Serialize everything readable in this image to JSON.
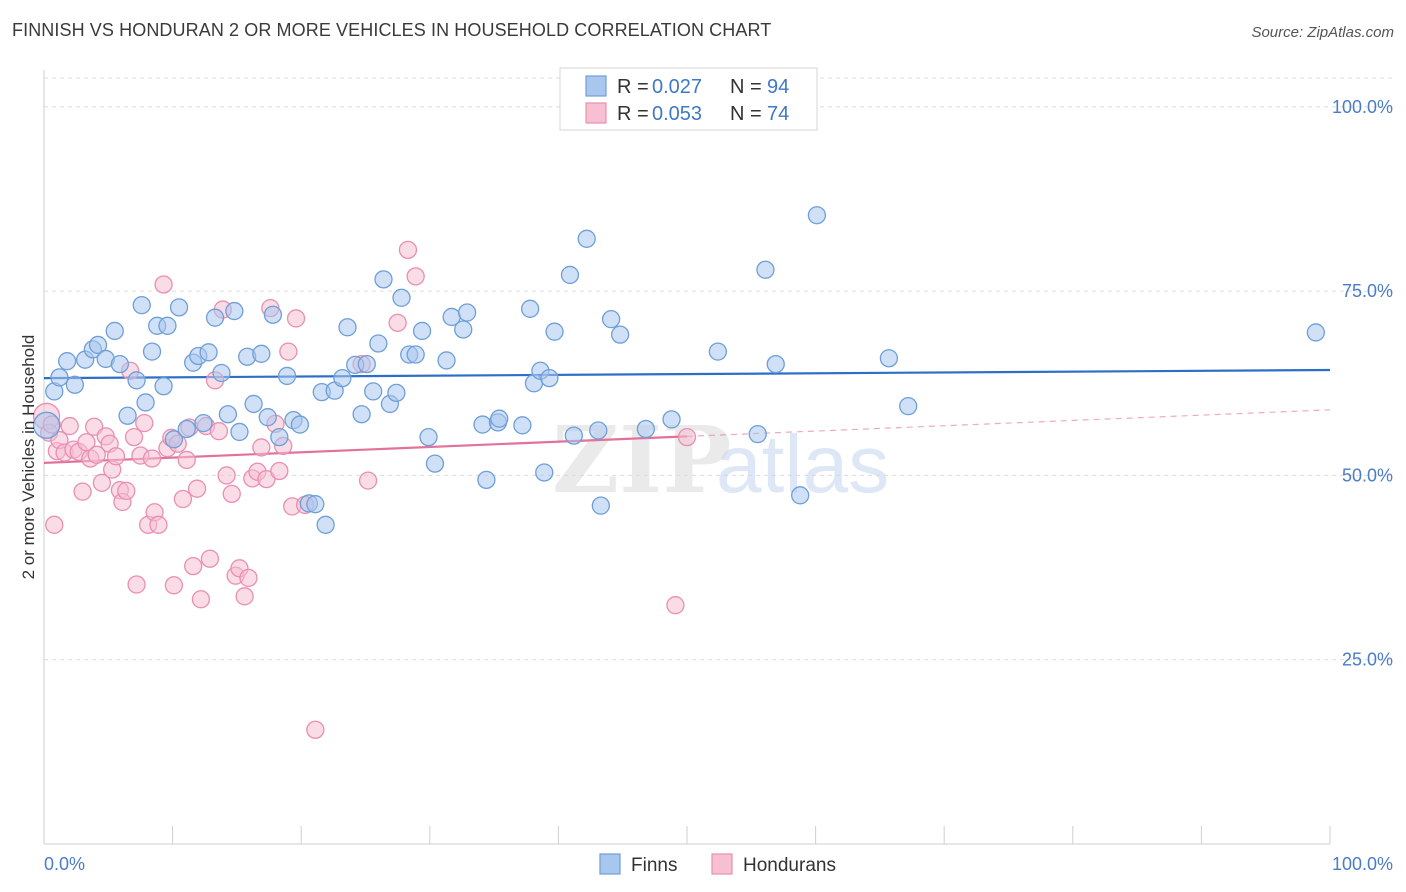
{
  "title": "FINNISH VS HONDURAN 2 OR MORE VEHICLES IN HOUSEHOLD CORRELATION CHART",
  "source": "Source: ZipAtlas.com",
  "watermark": {
    "zip": "ZIP",
    "atlas": "atlas"
  },
  "colors": {
    "finns_fill": "#a9c6ee",
    "finns_stroke": "#6f9fd8",
    "finns_line": "#2d6fc7",
    "hondurans_fill": "#f6bfd2",
    "hondurans_stroke": "#e98fb0",
    "hondurans_line": "#e2729a",
    "grid": "#dcdcdc",
    "axis_label": "#4a7cc9"
  },
  "legend": {
    "finns": {
      "r_label": "R = ",
      "r_value": "0.027",
      "n_label": "N = ",
      "n_value": "94"
    },
    "hondurans": {
      "r_label": "R = ",
      "r_value": "0.053",
      "n_label": "N = ",
      "n_value": "74"
    }
  },
  "bottom_legend": {
    "finns": "Finns",
    "hondurans": "Hondurans"
  },
  "chart_data": {
    "type": "scatter",
    "title": "FINNISH VS HONDURAN 2 OR MORE VEHICLES IN HOUSEHOLD CORRELATION CHART",
    "xlabel": "",
    "ylabel": "2 or more Vehicles in Household",
    "xlim": [
      0,
      100
    ],
    "ylim": [
      0,
      105
    ],
    "x_tick_labels": [
      "0.0%",
      "100.0%"
    ],
    "y_ticks": [
      25,
      50,
      75,
      100
    ],
    "y_tick_labels": [
      "25.0%",
      "50.0%",
      "75.0%",
      "100.0%"
    ],
    "grid": true,
    "series": [
      {
        "name": "Finns",
        "r": 0.027,
        "n": 94,
        "trend": {
          "x": [
            0,
            100
          ],
          "y": [
            63.2,
            64.3
          ],
          "dashed_from": null
        },
        "points": [
          [
            0.2,
            56.8
          ],
          [
            0.8,
            61.4
          ],
          [
            1.2,
            63.3
          ],
          [
            1.8,
            65.5
          ],
          [
            2.4,
            62.3
          ],
          [
            3.2,
            65.7
          ],
          [
            3.8,
            67.1
          ],
          [
            4.2,
            67.7
          ],
          [
            4.8,
            65.8
          ],
          [
            5.5,
            69.6
          ],
          [
            5.9,
            65.1
          ],
          [
            6.5,
            58.1
          ],
          [
            7.2,
            62.9
          ],
          [
            7.6,
            73.1
          ],
          [
            7.9,
            59.9
          ],
          [
            8.4,
            66.8
          ],
          [
            8.8,
            70.3
          ],
          [
            9.3,
            62.1
          ],
          [
            9.6,
            70.3
          ],
          [
            10.1,
            54.9
          ],
          [
            10.5,
            72.8
          ],
          [
            11.1,
            56.3
          ],
          [
            11.6,
            65.3
          ],
          [
            12.0,
            66.2
          ],
          [
            12.4,
            57.1
          ],
          [
            12.8,
            66.7
          ],
          [
            13.3,
            71.4
          ],
          [
            13.8,
            63.9
          ],
          [
            14.3,
            58.3
          ],
          [
            14.8,
            72.3
          ],
          [
            15.2,
            55.9
          ],
          [
            15.8,
            66.1
          ],
          [
            16.3,
            59.7
          ],
          [
            16.9,
            66.5
          ],
          [
            17.4,
            57.9
          ],
          [
            17.8,
            71.8
          ],
          [
            18.3,
            55.2
          ],
          [
            18.9,
            63.5
          ],
          [
            19.4,
            57.5
          ],
          [
            19.9,
            56.9
          ],
          [
            20.6,
            46.2
          ],
          [
            21.1,
            46.1
          ],
          [
            21.6,
            61.3
          ],
          [
            21.9,
            43.3
          ],
          [
            22.6,
            61.5
          ],
          [
            23.2,
            63.2
          ],
          [
            23.6,
            70.1
          ],
          [
            24.2,
            65.0
          ],
          [
            24.7,
            58.3
          ],
          [
            25.1,
            65.1
          ],
          [
            25.6,
            61.4
          ],
          [
            26.0,
            67.9
          ],
          [
            26.4,
            76.6
          ],
          [
            26.9,
            59.7
          ],
          [
            27.4,
            61.2
          ],
          [
            27.8,
            74.1
          ],
          [
            28.4,
            66.4
          ],
          [
            28.9,
            66.4
          ],
          [
            29.4,
            69.6
          ],
          [
            29.9,
            55.2
          ],
          [
            30.4,
            51.6
          ],
          [
            31.3,
            65.6
          ],
          [
            31.7,
            71.5
          ],
          [
            32.6,
            69.8
          ],
          [
            32.9,
            72.1
          ],
          [
            34.1,
            56.9
          ],
          [
            34.4,
            49.4
          ],
          [
            35.3,
            57.2
          ],
          [
            35.4,
            57.7
          ],
          [
            37.2,
            56.8
          ],
          [
            37.8,
            72.6
          ],
          [
            38.1,
            62.5
          ],
          [
            38.6,
            64.2
          ],
          [
            38.9,
            50.4
          ],
          [
            39.3,
            63.2
          ],
          [
            39.7,
            69.5
          ],
          [
            40.9,
            77.2
          ],
          [
            41.2,
            55.4
          ],
          [
            42.2,
            82.1
          ],
          [
            43.1,
            56.1
          ],
          [
            43.3,
            45.9
          ],
          [
            44.1,
            71.2
          ],
          [
            44.8,
            69.1
          ],
          [
            46.8,
            56.3
          ],
          [
            48.8,
            57.6
          ],
          [
            52.4,
            66.8
          ],
          [
            55.5,
            55.6
          ],
          [
            56.1,
            77.9
          ],
          [
            56.9,
            65.1
          ],
          [
            58.8,
            47.3
          ],
          [
            60.1,
            85.3
          ],
          [
            65.7,
            65.9
          ],
          [
            67.2,
            59.4
          ],
          [
            98.9,
            69.4
          ]
        ]
      },
      {
        "name": "Hondurans",
        "r": 0.053,
        "n": 74,
        "trend": {
          "x": [
            0,
            100
          ],
          "y": [
            51.7,
            58.9
          ],
          "dashed_from": 50
        },
        "points": [
          [
            0.2,
            58.0
          ],
          [
            0.4,
            55.8
          ],
          [
            0.6,
            56.9
          ],
          [
            0.8,
            43.3
          ],
          [
            1.0,
            53.3
          ],
          [
            1.2,
            54.8
          ],
          [
            1.6,
            53.1
          ],
          [
            2.0,
            56.7
          ],
          [
            2.3,
            53.5
          ],
          [
            2.7,
            53.2
          ],
          [
            3.0,
            47.8
          ],
          [
            3.3,
            54.5
          ],
          [
            3.6,
            52.3
          ],
          [
            3.9,
            56.6
          ],
          [
            4.1,
            52.8
          ],
          [
            4.5,
            49.0
          ],
          [
            4.8,
            55.3
          ],
          [
            5.1,
            54.3
          ],
          [
            5.3,
            50.8
          ],
          [
            5.6,
            52.6
          ],
          [
            5.9,
            48.0
          ],
          [
            6.1,
            46.4
          ],
          [
            6.4,
            47.9
          ],
          [
            6.7,
            64.2
          ],
          [
            7.0,
            55.2
          ],
          [
            7.2,
            35.2
          ],
          [
            7.5,
            52.7
          ],
          [
            7.8,
            57.1
          ],
          [
            8.1,
            43.3
          ],
          [
            8.4,
            52.3
          ],
          [
            8.6,
            45.0
          ],
          [
            8.9,
            43.3
          ],
          [
            9.3,
            75.9
          ],
          [
            9.6,
            53.7
          ],
          [
            9.9,
            55.1
          ],
          [
            10.1,
            35.1
          ],
          [
            10.4,
            54.3
          ],
          [
            10.8,
            46.8
          ],
          [
            11.1,
            52.1
          ],
          [
            11.3,
            56.5
          ],
          [
            11.6,
            37.7
          ],
          [
            11.9,
            48.2
          ],
          [
            12.2,
            33.2
          ],
          [
            12.6,
            56.7
          ],
          [
            12.9,
            38.7
          ],
          [
            13.3,
            62.9
          ],
          [
            13.6,
            56.0
          ],
          [
            13.9,
            72.5
          ],
          [
            14.2,
            50.0
          ],
          [
            14.6,
            47.5
          ],
          [
            14.9,
            36.4
          ],
          [
            15.2,
            37.4
          ],
          [
            15.6,
            33.6
          ],
          [
            15.9,
            36.1
          ],
          [
            16.2,
            49.6
          ],
          [
            16.6,
            50.5
          ],
          [
            16.9,
            53.8
          ],
          [
            17.3,
            49.5
          ],
          [
            17.6,
            72.7
          ],
          [
            18.0,
            57.0
          ],
          [
            18.3,
            50.6
          ],
          [
            18.6,
            54.0
          ],
          [
            19.0,
            66.8
          ],
          [
            19.3,
            45.8
          ],
          [
            19.6,
            71.3
          ],
          [
            20.3,
            46.0
          ],
          [
            21.1,
            15.5
          ],
          [
            24.7,
            65.1
          ],
          [
            25.2,
            49.3
          ],
          [
            27.5,
            70.7
          ],
          [
            28.3,
            80.6
          ],
          [
            28.9,
            77.0
          ],
          [
            49.1,
            32.4
          ],
          [
            50.0,
            55.2
          ]
        ]
      }
    ]
  }
}
